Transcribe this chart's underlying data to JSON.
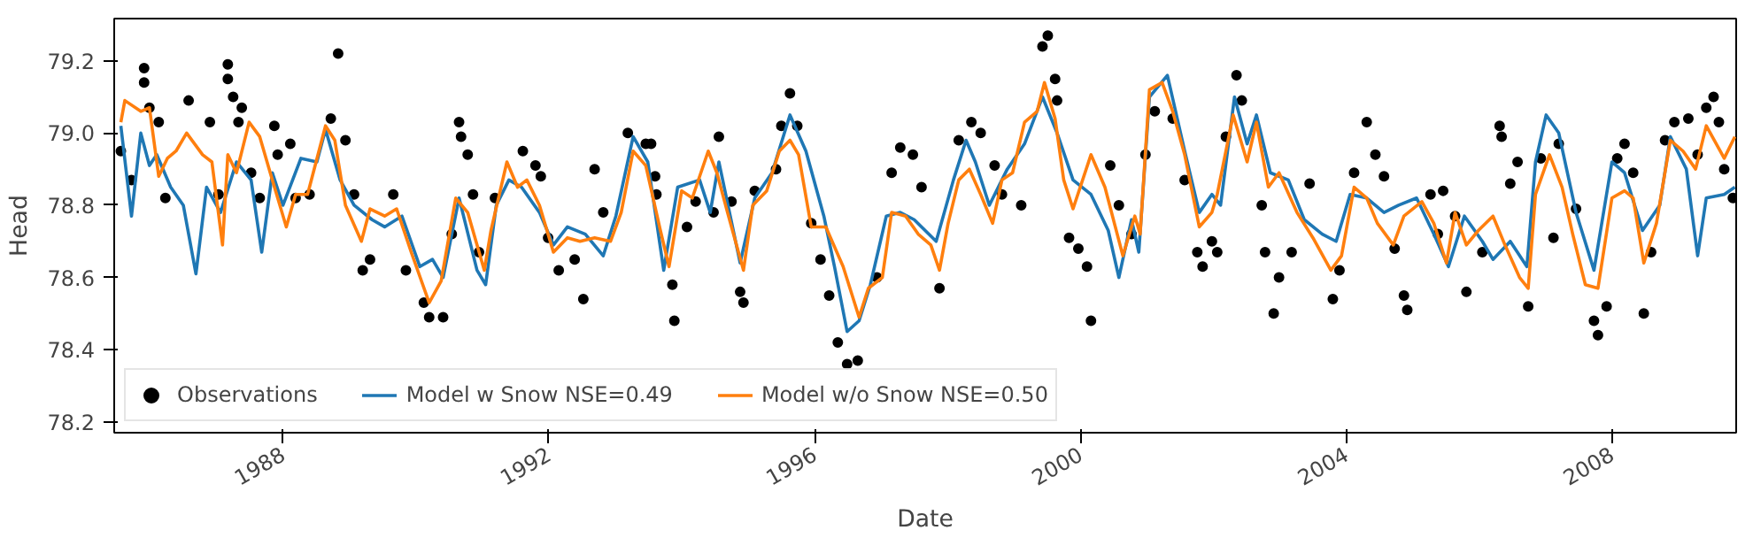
{
  "chart_data": {
    "type": "line",
    "xlabel": "Date",
    "ylabel": "Head",
    "xlim": [
      1985.46,
      2009.87
    ],
    "xticks": [
      1988,
      1992,
      1996,
      2000,
      2004,
      2008
    ],
    "ylim": [
      78.17,
      79.317
    ],
    "yticks": [
      {
        "value": 78.2,
        "label": "78.2"
      },
      {
        "value": 78.4,
        "label": "78.4"
      },
      {
        "value": 78.6,
        "label": "78.6"
      },
      {
        "value": 78.8,
        "label": "78.8"
      },
      {
        "value": 79.0,
        "label": "79.0"
      },
      {
        "value": 79.2,
        "label": "79.2"
      }
    ],
    "grid": false,
    "legend": "bottom left",
    "series": [
      {
        "name": "Observations",
        "type": "scatter",
        "marker": "circle",
        "color": "#000000",
        "x": [
          1985.91,
          1985.91,
          1985.99,
          1986.13,
          1985.56,
          1985.72,
          1986.23,
          1986.58,
          1986.9,
          1987.03,
          1987.17,
          1987.17,
          1987.25,
          1987.38,
          1987.33,
          1987.52,
          1987.65,
          1987.87,
          1987.92,
          1988.11,
          1988.19,
          1988.4,
          1988.72,
          1988.83,
          1988.94,
          1989.07,
          1989.2,
          1989.31,
          1989.66,
          1989.85,
          1990.12,
          1990.2,
          1990.41,
          1990.54,
          1990.65,
          1990.68,
          1990.78,
          1990.86,
          1990.95,
          1991.19,
          1991.61,
          1991.8,
          1991.88,
          1991.99,
          1992.15,
          1992.39,
          1992.52,
          1992.69,
          1992.82,
          1993.19,
          1993.46,
          1993.6,
          1993.54,
          1993.62,
          1993.86,
          1993.89,
          1994.08,
          1994.21,
          1994.48,
          1994.56,
          1994.75,
          1994.88,
          1994.93,
          1995.1,
          1995.42,
          1995.5,
          1995.63,
          1995.74,
          1995.95,
          1996.09,
          1996.22,
          1996.35,
          1996.49,
          1996.65,
          1996.94,
          1997.16,
          1997.29,
          1997.48,
          1997.61,
          1997.88,
          1998.17,
          1998.36,
          1998.5,
          1998.71,
          1998.82,
          1999.11,
          1999.43,
          1999.51,
          1999.62,
          1999.65,
          1999.83,
          1999.97,
          2000.1,
          2000.16,
          2000.45,
          2000.58,
          2000.77,
          2000.98,
          2001.12,
          2001.39,
          2001.57,
          2001.76,
          2001.98,
          2001.84,
          2002.06,
          2002.19,
          2002.35,
          2002.43,
          2002.73,
          2002.78,
          2002.91,
          2002.99,
          2003.18,
          2003.45,
          2003.8,
          2003.9,
          2004.12,
          2004.31,
          2004.44,
          2004.57,
          2004.73,
          2004.87,
          2004.92,
          2005.27,
          2005.46,
          2005.38,
          2005.64,
          2005.81,
          2006.05,
          2006.31,
          2006.34,
          2006.47,
          2006.58,
          2006.74,
          2006.93,
          2007.12,
          2007.2,
          2007.46,
          2007.73,
          2007.79,
          2007.92,
          2008.08,
          2008.19,
          2008.32,
          2008.48,
          2008.59,
          2008.8,
          2008.94,
          2009.15,
          2009.29,
          2009.42,
          2009.53,
          2009.61,
          2009.69,
          2009.82
        ],
        "values": [
          79.18,
          79.14,
          79.07,
          79.03,
          78.95,
          78.87,
          78.82,
          79.09,
          79.03,
          78.83,
          79.19,
          79.15,
          79.1,
          79.07,
          79.03,
          78.89,
          78.82,
          79.02,
          78.94,
          78.97,
          78.82,
          78.83,
          79.04,
          79.22,
          78.98,
          78.83,
          78.62,
          78.65,
          78.83,
          78.62,
          78.53,
          78.49,
          78.49,
          78.72,
          79.03,
          78.99,
          78.94,
          78.83,
          78.67,
          78.82,
          78.95,
          78.91,
          78.88,
          78.71,
          78.62,
          78.65,
          78.54,
          78.9,
          78.78,
          79.0,
          78.97,
          78.88,
          78.97,
          78.83,
          78.58,
          78.48,
          78.74,
          78.81,
          78.78,
          78.99,
          78.81,
          78.56,
          78.53,
          78.84,
          78.9,
          79.02,
          79.11,
          79.02,
          78.75,
          78.65,
          78.55,
          78.42,
          78.36,
          78.37,
          78.6,
          78.89,
          78.96,
          78.94,
          78.85,
          78.57,
          78.98,
          79.03,
          79.0,
          78.91,
          78.83,
          78.8,
          79.24,
          79.27,
          79.15,
          79.09,
          78.71,
          78.68,
          78.63,
          78.48,
          78.91,
          78.8,
          78.72,
          78.94,
          79.06,
          79.04,
          78.87,
          78.67,
          78.7,
          78.63,
          78.67,
          78.99,
          79.16,
          79.09,
          78.8,
          78.67,
          78.5,
          78.6,
          78.67,
          78.86,
          78.54,
          78.62,
          78.89,
          79.03,
          78.94,
          78.88,
          78.68,
          78.55,
          78.51,
          78.83,
          78.84,
          78.72,
          78.77,
          78.56,
          78.67,
          79.02,
          78.99,
          78.86,
          78.92,
          78.52,
          78.93,
          78.71,
          78.97,
          78.79,
          78.48,
          78.44,
          78.52,
          78.93,
          78.97,
          78.89,
          78.5,
          78.67,
          78.98,
          79.03,
          79.04,
          78.94,
          79.07,
          79.1,
          79.03,
          78.9,
          78.82
        ]
      },
      {
        "name": "Model w Snow NSE=0.49",
        "color": "#1f77b4",
        "x": [
          1985.56,
          1985.72,
          1985.86,
          1985.99,
          1986.1,
          1986.31,
          1986.5,
          1986.69,
          1986.85,
          1987.06,
          1987.3,
          1987.52,
          1987.68,
          1987.84,
          1988.0,
          1988.27,
          1988.51,
          1988.64,
          1988.86,
          1989.07,
          1989.34,
          1989.53,
          1989.79,
          1990.06,
          1990.25,
          1990.41,
          1990.65,
          1990.92,
          1991.05,
          1991.21,
          1991.4,
          1991.59,
          1991.86,
          1992.07,
          1992.28,
          1992.55,
          1992.82,
          1993.01,
          1993.27,
          1993.49,
          1993.73,
          1993.94,
          1994.27,
          1994.43,
          1994.56,
          1994.88,
          1995.1,
          1995.36,
          1995.63,
          1995.87,
          1996.14,
          1996.3,
          1996.49,
          1996.67,
          1996.84,
          1997.08,
          1997.29,
          1997.5,
          1997.83,
          1998.09,
          1998.28,
          1998.42,
          1998.63,
          1998.9,
          1999.16,
          1999.43,
          1999.65,
          1999.89,
          2000.16,
          2000.42,
          2000.58,
          2000.77,
          2000.88,
          2001.04,
          2001.31,
          2001.57,
          2001.79,
          2001.98,
          2002.11,
          2002.32,
          2002.51,
          2002.65,
          2002.86,
          2003.13,
          2003.37,
          2003.64,
          2003.85,
          2004.06,
          2004.31,
          2004.57,
          2004.79,
          2005.06,
          2005.32,
          2005.54,
          2005.78,
          2006.05,
          2006.21,
          2006.47,
          2006.72,
          2006.85,
          2007.01,
          2007.2,
          2007.46,
          2007.73,
          2008.0,
          2008.19,
          2008.46,
          2008.72,
          2008.88,
          2009.12,
          2009.29,
          2009.42,
          2009.69,
          2009.85
        ],
        "values": [
          79.02,
          78.77,
          79.0,
          78.91,
          78.94,
          78.85,
          78.8,
          78.61,
          78.85,
          78.78,
          78.92,
          78.87,
          78.67,
          78.89,
          78.8,
          78.93,
          78.92,
          79.01,
          78.87,
          78.8,
          78.76,
          78.74,
          78.77,
          78.63,
          78.65,
          78.6,
          78.82,
          78.62,
          78.58,
          78.8,
          78.87,
          78.85,
          78.78,
          78.69,
          78.74,
          78.72,
          78.66,
          78.77,
          78.99,
          78.92,
          78.62,
          78.85,
          78.87,
          78.78,
          78.92,
          78.64,
          78.82,
          78.89,
          79.05,
          78.95,
          78.77,
          78.63,
          78.45,
          78.48,
          78.58,
          78.77,
          78.78,
          78.76,
          78.7,
          78.87,
          78.98,
          78.92,
          78.8,
          78.9,
          78.97,
          79.1,
          79.0,
          78.87,
          78.83,
          78.73,
          78.6,
          78.76,
          78.67,
          79.1,
          79.16,
          78.95,
          78.78,
          78.83,
          78.8,
          79.1,
          78.97,
          79.05,
          78.89,
          78.87,
          78.76,
          78.72,
          78.7,
          78.83,
          78.82,
          78.78,
          78.8,
          78.82,
          78.72,
          78.63,
          78.77,
          78.7,
          78.65,
          78.7,
          78.63,
          78.92,
          79.05,
          79.0,
          78.78,
          78.62,
          78.92,
          78.89,
          78.73,
          78.8,
          78.99,
          78.9,
          78.66,
          78.82,
          78.83,
          78.85
        ]
      },
      {
        "name": "Model w/o Snow NSE=0.50",
        "color": "#ff7f0e",
        "x": [
          1985.56,
          1985.62,
          1985.86,
          1985.99,
          1986.13,
          1986.26,
          1986.39,
          1986.55,
          1986.79,
          1986.93,
          1987.09,
          1987.17,
          1987.3,
          1987.49,
          1987.65,
          1987.84,
          1988.05,
          1988.19,
          1988.37,
          1988.64,
          1988.78,
          1988.94,
          1989.18,
          1989.31,
          1989.53,
          1989.71,
          1989.93,
          1990.2,
          1990.38,
          1990.6,
          1990.78,
          1991.03,
          1991.13,
          1991.37,
          1991.53,
          1991.67,
          1991.86,
          1992.07,
          1992.28,
          1992.47,
          1992.69,
          1992.93,
          1993.09,
          1993.27,
          1993.46,
          1993.68,
          1993.81,
          1994.0,
          1994.16,
          1994.4,
          1994.53,
          1994.69,
          1994.93,
          1995.07,
          1995.28,
          1995.47,
          1995.63,
          1995.76,
          1995.95,
          1996.17,
          1996.43,
          1996.67,
          1996.81,
          1997.02,
          1997.16,
          1997.37,
          1997.56,
          1997.75,
          1997.88,
          1998.01,
          1998.17,
          1998.33,
          1998.5,
          1998.68,
          1998.82,
          1998.98,
          1999.16,
          1999.35,
          1999.46,
          1999.62,
          1999.75,
          1999.89,
          2000.16,
          2000.37,
          2000.64,
          2000.82,
          2000.9,
          2001.04,
          2001.23,
          2001.39,
          2001.57,
          2001.79,
          2001.98,
          2002.06,
          2002.3,
          2002.51,
          2002.65,
          2002.83,
          2002.99,
          2003.26,
          2003.5,
          2003.77,
          2003.93,
          2004.12,
          2004.31,
          2004.47,
          2004.71,
          2004.87,
          2005.14,
          2005.32,
          2005.51,
          2005.64,
          2005.81,
          2005.99,
          2006.21,
          2006.39,
          2006.61,
          2006.74,
          2006.85,
          2007.06,
          2007.25,
          2007.41,
          2007.6,
          2007.79,
          2008.0,
          2008.19,
          2008.32,
          2008.48,
          2008.67,
          2008.88,
          2009.07,
          2009.26,
          2009.42,
          2009.69,
          2009.85
        ],
        "values": [
          79.03,
          79.09,
          79.06,
          79.07,
          78.88,
          78.93,
          78.95,
          79.0,
          78.94,
          78.92,
          78.69,
          78.94,
          78.89,
          79.03,
          78.99,
          78.87,
          78.74,
          78.83,
          78.83,
          79.02,
          78.98,
          78.8,
          78.7,
          78.79,
          78.77,
          78.79,
          78.67,
          78.53,
          78.59,
          78.82,
          78.78,
          78.62,
          78.73,
          78.92,
          78.85,
          78.87,
          78.8,
          78.67,
          78.71,
          78.7,
          78.71,
          78.7,
          78.78,
          78.95,
          78.91,
          78.73,
          78.63,
          78.84,
          78.82,
          78.95,
          78.89,
          78.78,
          78.62,
          78.8,
          78.84,
          78.95,
          78.98,
          78.94,
          78.74,
          78.74,
          78.63,
          78.49,
          78.57,
          78.6,
          78.78,
          78.77,
          78.72,
          78.69,
          78.62,
          78.75,
          78.87,
          78.9,
          78.83,
          78.75,
          78.87,
          78.89,
          79.03,
          79.06,
          79.14,
          79.04,
          78.87,
          78.79,
          78.94,
          78.85,
          78.66,
          78.77,
          78.72,
          79.12,
          79.14,
          79.06,
          78.94,
          78.74,
          78.78,
          78.83,
          79.05,
          78.92,
          79.03,
          78.85,
          78.89,
          78.78,
          78.71,
          78.62,
          78.66,
          78.85,
          78.82,
          78.75,
          78.69,
          78.77,
          78.81,
          78.75,
          78.64,
          78.78,
          78.69,
          78.73,
          78.77,
          78.69,
          78.6,
          78.57,
          78.83,
          78.94,
          78.85,
          78.72,
          78.58,
          78.57,
          78.82,
          78.84,
          78.82,
          78.64,
          78.75,
          78.98,
          78.95,
          78.9,
          79.02,
          78.93,
          78.99
        ]
      }
    ]
  }
}
